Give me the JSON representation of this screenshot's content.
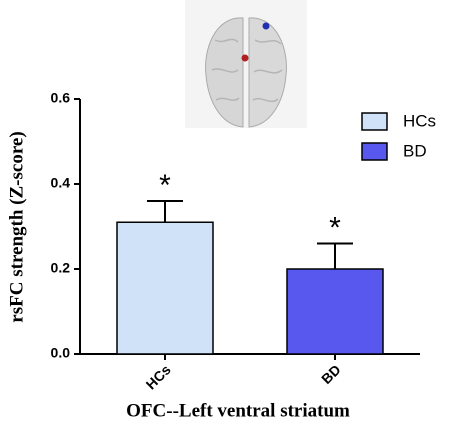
{
  "chart_data": {
    "type": "bar",
    "categories": [
      "HCs",
      "BD"
    ],
    "values": [
      0.31,
      0.2
    ],
    "errors": [
      0.05,
      0.06
    ],
    "annotations": [
      "*",
      "*"
    ],
    "colors": [
      "#cfe2f7",
      "#5858ee"
    ],
    "legend": [
      {
        "name": "HCs",
        "color": "#cfe2f7"
      },
      {
        "name": "BD",
        "color": "#5858ee"
      }
    ],
    "x_label": "OFC--Left ventral striatum",
    "y_label": "rsFC strength (Z-score)",
    "ylim": [
      0,
      0.6
    ],
    "yticks": [
      {
        "value": 0,
        "label": "0.0"
      },
      0.2,
      0.4,
      0.6
    ]
  }
}
